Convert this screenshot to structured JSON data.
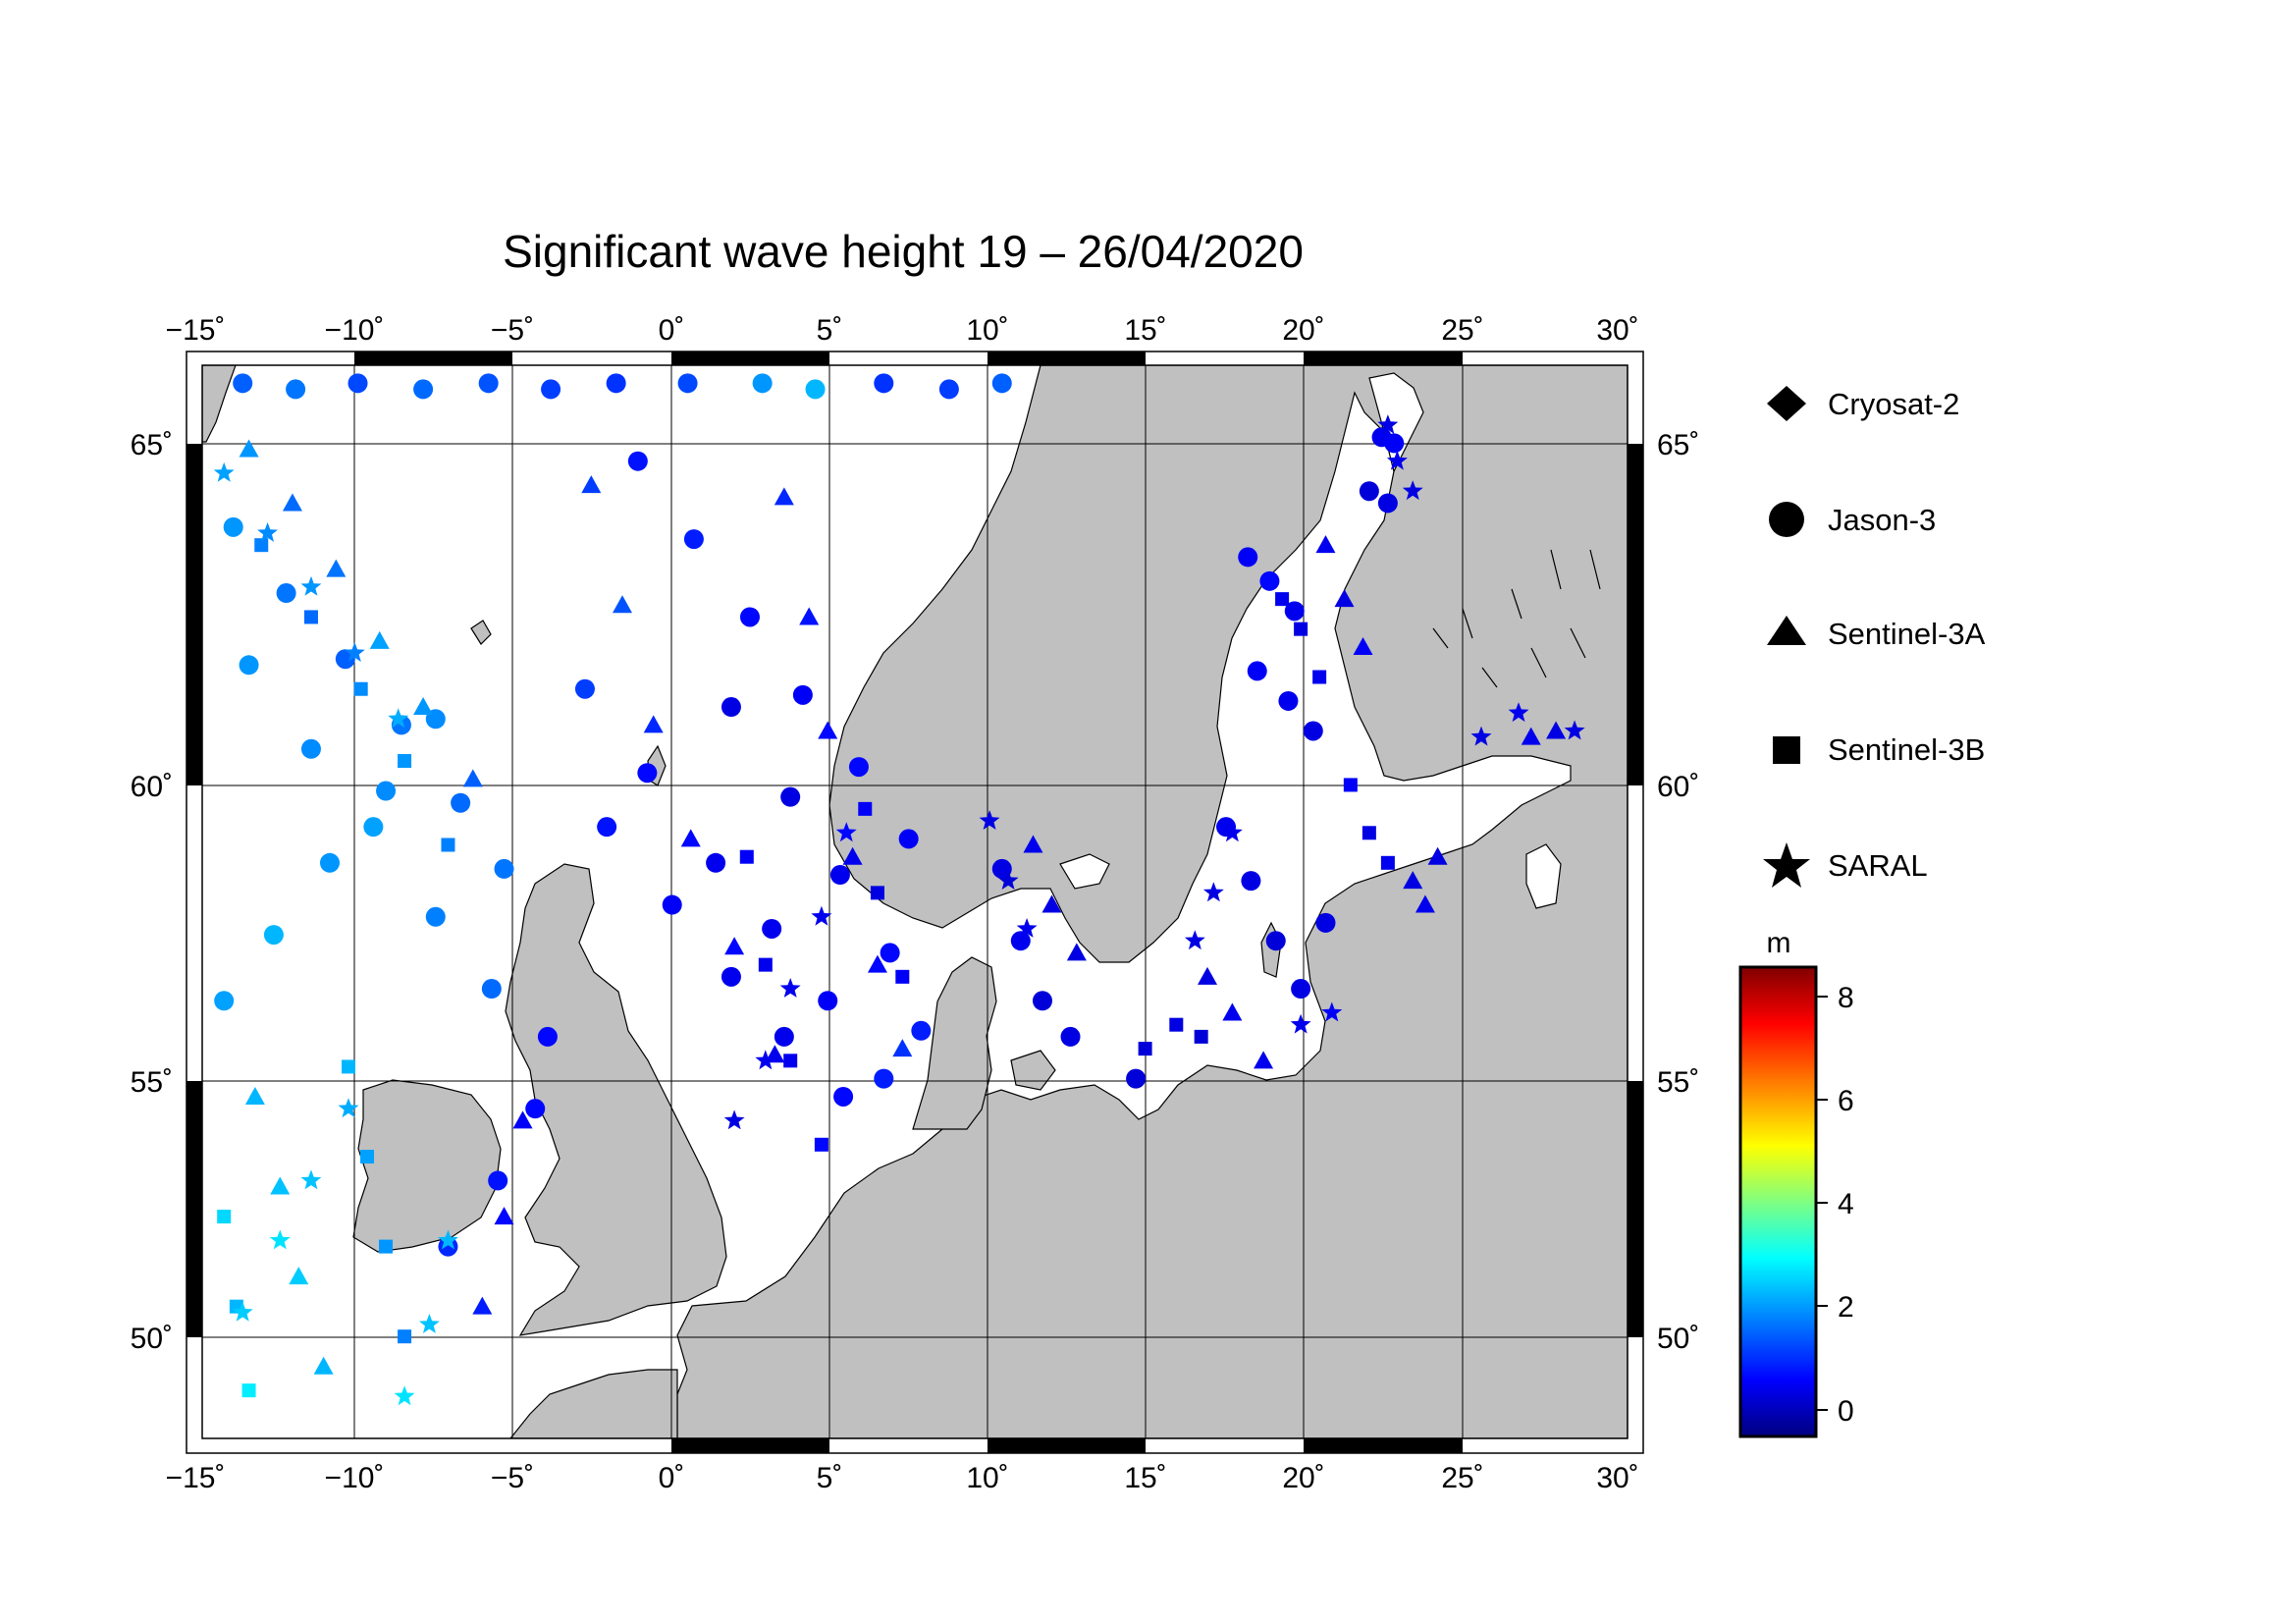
{
  "title": "Significant wave height 19 – 26/04/2020",
  "map": {
    "lon_range": [
      -15.5,
      30.3
    ],
    "lat_range": [
      48.3,
      66.2
    ],
    "lon_ticks": [
      -15,
      -10,
      -5,
      0,
      5,
      10,
      15,
      20,
      25,
      30
    ],
    "lat_ticks": [
      50,
      55,
      60,
      65
    ],
    "lon_tick_labels": [
      "−15˚",
      "−10˚",
      "−5˚",
      "0˚",
      "5˚",
      "10˚",
      "15˚",
      "20˚",
      "25˚",
      "30˚"
    ],
    "lat_tick_labels": [
      "50˚",
      "55˚",
      "60˚",
      "65˚"
    ],
    "land_color": "#c0c0c0",
    "sea_color": "#ffffff",
    "grid": true
  },
  "legend": {
    "items": [
      {
        "label": "Cryosat-2",
        "symbol": "diamond"
      },
      {
        "label": "Jason-3",
        "symbol": "circle"
      },
      {
        "label": "Sentinel-3A",
        "symbol": "triangle"
      },
      {
        "label": "Sentinel-3B",
        "symbol": "square"
      },
      {
        "label": "SARAL",
        "symbol": "star"
      }
    ]
  },
  "colorbar": {
    "unit": "m",
    "range": [
      -0.6,
      8.6
    ],
    "ticks": [
      0,
      2,
      4,
      6,
      8
    ],
    "tick_labels": [
      "0",
      "2",
      "4",
      "6",
      "8"
    ],
    "colormap": [
      "#000080",
      "#0000ff",
      "#0080ff",
      "#00ffff",
      "#80ff80",
      "#ffff00",
      "#ff8000",
      "#ff0000",
      "#800000"
    ]
  },
  "chart_data": {
    "type": "scatter",
    "title": "Significant wave height 19 – 26/04/2020",
    "x_quantity": "longitude (deg)",
    "y_quantity": "latitude (deg)",
    "value_quantity": "significant wave height (m)",
    "xlim": [
      -15.5,
      30.3
    ],
    "ylim": [
      48.3,
      66.2
    ],
    "series": [
      {
        "name": "Jason-3",
        "symbol": "circle",
        "points": [
          [
            -14.2,
            65.9,
            1.4
          ],
          [
            -12.5,
            65.8,
            1.6
          ],
          [
            -10.5,
            65.9,
            1.2
          ],
          [
            -8.4,
            65.8,
            1.5
          ],
          [
            -6.3,
            65.9,
            1.3
          ],
          [
            -4.3,
            65.8,
            1.1
          ],
          [
            -2.2,
            65.9,
            1.0
          ],
          [
            0.1,
            65.9,
            1.2
          ],
          [
            2.5,
            65.9,
            1.9
          ],
          [
            4.2,
            65.8,
            2.2
          ],
          [
            6.4,
            65.9,
            1.0
          ],
          [
            8.5,
            65.8,
            1.1
          ],
          [
            10.2,
            65.9,
            1.4
          ],
          [
            -14.5,
            63.5,
            1.9
          ],
          [
            -12.8,
            62.4,
            1.6
          ],
          [
            -10.9,
            61.3,
            1.4
          ],
          [
            -9.1,
            60.2,
            1.6
          ],
          [
            -7.2,
            58.9,
            1.5
          ],
          [
            -5.8,
            57.8,
            1.6
          ],
          [
            -1.5,
            64.6,
            0.7
          ],
          [
            0.3,
            63.3,
            0.8
          ],
          [
            2.1,
            62.0,
            0.6
          ],
          [
            3.8,
            60.7,
            0.5
          ],
          [
            5.6,
            59.5,
            0.6
          ],
          [
            7.2,
            58.3,
            0.5
          ],
          [
            -3.2,
            60.8,
            1.1
          ],
          [
            -1.2,
            59.4,
            0.6
          ],
          [
            1.0,
            57.9,
            0.4
          ],
          [
            2.8,
            56.8,
            0.4
          ],
          [
            4.6,
            55.6,
            0.5
          ],
          [
            6.4,
            54.3,
            0.8
          ],
          [
            1.5,
            60.5,
            0.3
          ],
          [
            3.4,
            59.0,
            0.3
          ],
          [
            5.0,
            57.7,
            0.4
          ],
          [
            6.6,
            56.4,
            0.6
          ],
          [
            7.6,
            55.1,
            0.8
          ],
          [
            -2.5,
            58.5,
            0.7
          ],
          [
            -0.4,
            57.2,
            0.5
          ],
          [
            1.5,
            56.0,
            0.4
          ],
          [
            3.2,
            55.0,
            0.4
          ],
          [
            5.1,
            54.0,
            0.6
          ],
          [
            -14.0,
            61.2,
            1.9
          ],
          [
            -12.0,
            59.8,
            1.8
          ],
          [
            -10.0,
            58.5,
            2.0
          ],
          [
            -8.0,
            57.0,
            1.7
          ],
          [
            -6.2,
            55.8,
            1.5
          ],
          [
            -14.8,
            55.6,
            2.0
          ],
          [
            -13.2,
            56.7,
            2.2
          ],
          [
            -11.4,
            57.9,
            1.9
          ],
          [
            -9.6,
            59.1,
            1.8
          ],
          [
            -8.0,
            60.3,
            1.8
          ],
          [
            -7.6,
            51.5,
            0.9
          ],
          [
            -6.0,
            52.6,
            0.7
          ],
          [
            -4.8,
            53.8,
            0.6
          ],
          [
            -4.4,
            55.0,
            0.6
          ],
          [
            10.2,
            57.8,
            0.3
          ],
          [
            10.8,
            56.6,
            0.4
          ],
          [
            11.5,
            55.6,
            0.2
          ],
          [
            12.4,
            55.0,
            0.3
          ],
          [
            14.5,
            54.3,
            0.2
          ],
          [
            18.1,
            63.0,
            0.5
          ],
          [
            18.8,
            62.6,
            0.6
          ],
          [
            19.6,
            62.1,
            0.4
          ],
          [
            18.4,
            61.1,
            0.5
          ],
          [
            19.4,
            60.6,
            0.4
          ],
          [
            20.2,
            60.1,
            0.3
          ],
          [
            17.4,
            58.5,
            0.4
          ],
          [
            18.2,
            57.6,
            0.3
          ],
          [
            19.0,
            56.6,
            0.2
          ],
          [
            19.8,
            55.8,
            0.3
          ],
          [
            20.6,
            56.9,
            0.3
          ],
          [
            22.4,
            65.0,
            0.4
          ],
          [
            22.8,
            64.9,
            0.5
          ],
          [
            22.0,
            64.1,
            0.2
          ],
          [
            22.6,
            63.9,
            0.3
          ]
        ]
      },
      {
        "name": "Sentinel-3A",
        "symbol": "triangle",
        "points": [
          [
            -14.0,
            64.8,
            1.9
          ],
          [
            -12.6,
            63.9,
            1.5
          ],
          [
            -11.2,
            62.8,
            1.6
          ],
          [
            -9.8,
            61.6,
            2.0
          ],
          [
            -8.4,
            60.5,
            1.9
          ],
          [
            -6.8,
            59.3,
            1.4
          ],
          [
            -3.0,
            64.2,
            1.1
          ],
          [
            -2.0,
            62.2,
            1.3
          ],
          [
            -1.0,
            60.2,
            0.9
          ],
          [
            0.2,
            58.3,
            0.6
          ],
          [
            1.6,
            56.5,
            0.6
          ],
          [
            2.9,
            54.7,
            0.4
          ],
          [
            3.2,
            64.0,
            0.9
          ],
          [
            4.0,
            62.0,
            0.7
          ],
          [
            4.6,
            60.1,
            0.6
          ],
          [
            5.4,
            58.0,
            0.4
          ],
          [
            6.2,
            56.2,
            0.6
          ],
          [
            7.0,
            54.8,
            1.0
          ],
          [
            -13.8,
            54.0,
            2.2
          ],
          [
            -13.0,
            52.5,
            2.3
          ],
          [
            -12.4,
            51.0,
            2.4
          ],
          [
            -11.6,
            49.5,
            2.2
          ],
          [
            -6.5,
            50.5,
            0.8
          ],
          [
            -5.8,
            52.0,
            0.6
          ],
          [
            -5.2,
            53.6,
            0.5
          ],
          [
            11.2,
            58.2,
            0.4
          ],
          [
            11.8,
            57.2,
            0.3
          ],
          [
            12.6,
            56.4,
            0.3
          ],
          [
            16.8,
            56.0,
            0.3
          ],
          [
            17.6,
            55.4,
            0.4
          ],
          [
            18.6,
            54.6,
            0.4
          ],
          [
            20.6,
            63.2,
            0.4
          ],
          [
            21.2,
            62.3,
            0.3
          ],
          [
            21.8,
            61.5,
            0.5
          ],
          [
            23.4,
            57.6,
            0.3
          ],
          [
            23.8,
            57.2,
            0.4
          ],
          [
            24.2,
            58.0,
            0.3
          ],
          [
            27.2,
            60.0,
            0.4
          ],
          [
            28.0,
            60.1,
            0.3
          ]
        ]
      },
      {
        "name": "Sentinel-3B",
        "symbol": "square",
        "points": [
          [
            -13.6,
            63.2,
            1.7
          ],
          [
            -12.0,
            62.0,
            1.5
          ],
          [
            -10.4,
            60.8,
            1.8
          ],
          [
            -9.0,
            59.6,
            1.9
          ],
          [
            -7.6,
            58.2,
            1.7
          ],
          [
            -10.8,
            54.5,
            2.2
          ],
          [
            -10.2,
            53.0,
            2.0
          ],
          [
            -9.6,
            51.5,
            1.9
          ],
          [
            -9.0,
            50.0,
            1.7
          ],
          [
            -14.8,
            52.0,
            2.5
          ],
          [
            -14.4,
            50.5,
            2.2
          ],
          [
            -14.0,
            49.1,
            2.7
          ],
          [
            2.0,
            58.0,
            0.5
          ],
          [
            2.6,
            56.2,
            0.4
          ],
          [
            3.4,
            54.6,
            0.4
          ],
          [
            4.4,
            53.2,
            0.6
          ],
          [
            5.8,
            58.8,
            0.5
          ],
          [
            6.2,
            57.4,
            0.3
          ],
          [
            7.0,
            56.0,
            0.5
          ],
          [
            14.8,
            54.8,
            0.2
          ],
          [
            15.8,
            55.2,
            0.3
          ],
          [
            16.6,
            55.0,
            0.2
          ],
          [
            19.2,
            62.3,
            0.4
          ],
          [
            19.8,
            61.8,
            0.3
          ],
          [
            20.4,
            61.0,
            0.4
          ],
          [
            21.4,
            59.2,
            0.5
          ],
          [
            22.0,
            58.4,
            0.3
          ],
          [
            22.6,
            57.9,
            0.4
          ]
        ]
      },
      {
        "name": "SARAL",
        "symbol": "star",
        "points": [
          [
            -14.8,
            64.4,
            2.0
          ],
          [
            -13.4,
            63.4,
            1.8
          ],
          [
            -12.0,
            62.5,
            1.9
          ],
          [
            -10.6,
            61.4,
            1.7
          ],
          [
            -9.2,
            60.3,
            2.1
          ],
          [
            -14.2,
            50.4,
            2.4
          ],
          [
            -13.0,
            51.6,
            2.6
          ],
          [
            -12.0,
            52.6,
            2.3
          ],
          [
            -10.8,
            53.8,
            2.1
          ],
          [
            -9.0,
            49.0,
            2.6
          ],
          [
            -8.2,
            50.2,
            2.3
          ],
          [
            -7.6,
            51.6,
            2.2
          ],
          [
            1.6,
            53.6,
            0.3
          ],
          [
            2.6,
            54.6,
            0.4
          ],
          [
            3.4,
            55.8,
            0.4
          ],
          [
            4.4,
            57.0,
            0.4
          ],
          [
            5.2,
            58.4,
            0.6
          ],
          [
            9.8,
            58.6,
            0.3
          ],
          [
            10.4,
            57.6,
            0.2
          ],
          [
            11.0,
            56.8,
            0.4
          ],
          [
            16.4,
            56.6,
            0.3
          ],
          [
            17.0,
            57.4,
            0.3
          ],
          [
            17.6,
            58.4,
            0.4
          ],
          [
            19.8,
            55.2,
            0.4
          ],
          [
            20.8,
            55.4,
            0.5
          ],
          [
            22.6,
            65.2,
            0.3
          ],
          [
            22.9,
            64.6,
            0.4
          ],
          [
            23.4,
            64.1,
            0.3
          ],
          [
            25.6,
            60.0,
            0.3
          ],
          [
            26.8,
            60.4,
            0.4
          ],
          [
            28.6,
            60.1,
            0.3
          ]
        ]
      }
    ]
  }
}
